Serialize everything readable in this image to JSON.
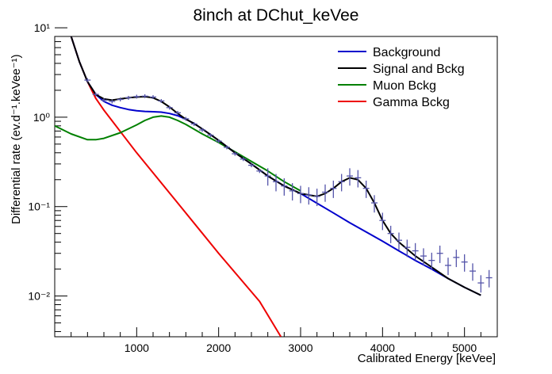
{
  "chart_data": {
    "type": "line",
    "title": "8inch at DChut_keVee",
    "xlabel": "Calibrated Energy [keVee]",
    "ylabel": "Differential rate (ev.d⁻¹.keVee⁻¹)",
    "yscale": "log",
    "xlim": [
      0,
      5400
    ],
    "ylim": [
      0.0035,
      8
    ],
    "grid": false,
    "legend_position": "top-right",
    "x_ticks": [
      1000,
      2000,
      3000,
      4000,
      5000
    ],
    "x_tick_labels": [
      "1000",
      "2000",
      "3000",
      "4000",
      "5000"
    ],
    "y_ticks": [
      0.01,
      0.1,
      1,
      10
    ],
    "y_tick_labels": [
      "10⁻²",
      "10⁻¹",
      "10⁰",
      "10¹"
    ],
    "series": [
      {
        "name": "Background",
        "color": "#0000cc",
        "x": [
          200,
          300,
          400,
          500,
          600,
          700,
          800,
          900,
          1000,
          1100,
          1200,
          1300,
          1400,
          1500,
          1600,
          1700,
          1800,
          1900,
          2000,
          2200,
          2400,
          2600,
          2800,
          3000,
          3200,
          3400,
          3600,
          3800,
          4000,
          4200,
          4400,
          4600,
          4800,
          5000,
          5200
        ],
        "y": [
          8.0,
          4.2,
          2.5,
          1.8,
          1.5,
          1.36,
          1.28,
          1.22,
          1.18,
          1.16,
          1.15,
          1.14,
          1.1,
          1.04,
          0.95,
          0.85,
          0.74,
          0.64,
          0.55,
          0.4,
          0.3,
          0.22,
          0.17,
          0.14,
          0.109,
          0.085,
          0.066,
          0.052,
          0.041,
          0.032,
          0.025,
          0.02,
          0.0157,
          0.0125,
          0.0102
        ]
      },
      {
        "name": "Signal and Bckg",
        "color": "#000000",
        "x": [
          200,
          300,
          400,
          500,
          600,
          700,
          800,
          900,
          1000,
          1100,
          1200,
          1300,
          1400,
          1500,
          1600,
          1700,
          1800,
          1900,
          2000,
          2200,
          2400,
          2600,
          2800,
          3000,
          3200,
          3300,
          3400,
          3500,
          3600,
          3700,
          3800,
          3900,
          4000,
          4100,
          4200,
          4400,
          4600,
          4800,
          5000,
          5200
        ],
        "y": [
          8.0,
          4.2,
          2.5,
          1.8,
          1.6,
          1.55,
          1.6,
          1.65,
          1.68,
          1.7,
          1.65,
          1.5,
          1.3,
          1.1,
          0.95,
          0.85,
          0.74,
          0.64,
          0.55,
          0.4,
          0.3,
          0.22,
          0.17,
          0.14,
          0.13,
          0.14,
          0.16,
          0.19,
          0.21,
          0.2,
          0.16,
          0.11,
          0.07,
          0.05,
          0.04,
          0.028,
          0.021,
          0.0157,
          0.0125,
          0.0102
        ]
      },
      {
        "name": "Muon Bckg",
        "color": "#008000",
        "x": [
          0,
          200,
          400,
          500,
          600,
          800,
          1000,
          1100,
          1200,
          1300,
          1400,
          1500,
          1600,
          1800,
          2000,
          2200,
          2400,
          2600,
          2800,
          3000
        ],
        "y": [
          0.8,
          0.65,
          0.56,
          0.56,
          0.58,
          0.67,
          0.82,
          0.92,
          1.0,
          1.03,
          1.0,
          0.92,
          0.83,
          0.65,
          0.52,
          0.41,
          0.32,
          0.25,
          0.19,
          0.15
        ]
      },
      {
        "name": "Gamma Bckg",
        "color": "#ee0000",
        "x": [
          200,
          300,
          400,
          500,
          600,
          1000,
          1500,
          2000,
          2500,
          2760
        ],
        "y": [
          8.0,
          4.2,
          2.5,
          1.63,
          1.2,
          0.4,
          0.11,
          0.03,
          0.0087,
          0.0035
        ]
      }
    ],
    "data_points": {
      "color": "#5555aa",
      "x": [
        400,
        500,
        600,
        700,
        800,
        900,
        1000,
        1100,
        1200,
        1300,
        1400,
        1500,
        1600,
        1700,
        1800,
        1900,
        2000,
        2100,
        2200,
        2300,
        2400,
        2500,
        2600,
        2700,
        2800,
        2900,
        3000,
        3100,
        3200,
        3300,
        3400,
        3500,
        3600,
        3700,
        3800,
        3900,
        4000,
        4100,
        4200,
        4300,
        4400,
        4500,
        4600,
        4700,
        4800,
        4900,
        5000,
        5100,
        5200,
        5300
      ],
      "y": [
        2.6,
        1.8,
        1.55,
        1.5,
        1.58,
        1.65,
        1.7,
        1.72,
        1.68,
        1.52,
        1.28,
        1.12,
        0.96,
        0.84,
        0.72,
        0.63,
        0.54,
        0.46,
        0.39,
        0.34,
        0.29,
        0.25,
        0.22,
        0.19,
        0.17,
        0.15,
        0.14,
        0.135,
        0.13,
        0.145,
        0.16,
        0.19,
        0.22,
        0.21,
        0.16,
        0.11,
        0.07,
        0.05,
        0.042,
        0.035,
        0.032,
        0.028,
        0.025,
        0.03,
        0.022,
        0.027,
        0.024,
        0.019,
        0.014,
        0.016
      ]
    }
  }
}
